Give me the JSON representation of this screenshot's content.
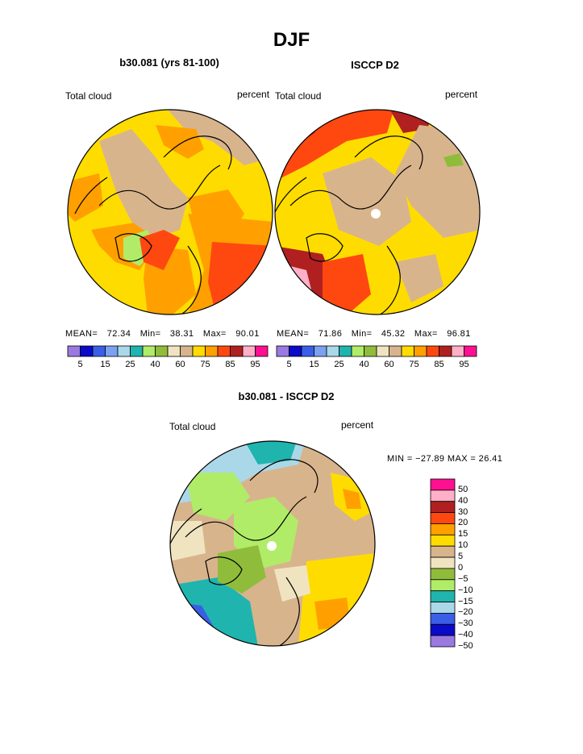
{
  "title": "DJF",
  "panels": [
    {
      "title": "b30.081 (yrs 81-100)",
      "left_label": "Total cloud",
      "right_label": "percent",
      "stats": {
        "mean_label": "MEAN=",
        "mean": "72.34",
        "min_label": "Min=",
        "min": "38.31",
        "max_label": "Max=",
        "max": "90.01"
      }
    },
    {
      "title": "ISCCP D2",
      "left_label": "Total cloud",
      "right_label": "percent",
      "stats": {
        "mean_label": "MEAN=",
        "mean": "71.86",
        "min_label": "Min=",
        "min": "45.32",
        "max_label": "Max=",
        "max": "96.81"
      }
    },
    {
      "title": "b30.081 - ISCCP D2",
      "left_label": "Total cloud",
      "right_label": "percent",
      "minmax": "MIN = −27.89 MAX =  26.41"
    }
  ],
  "colorbar_top": {
    "colors": [
      "#9a7ae0",
      "#0a0ac8",
      "#3a5ee8",
      "#7aa2f0",
      "#aad8e8",
      "#20b4ae",
      "#b0ec68",
      "#90bc3c",
      "#f0e4c0",
      "#d8b48c",
      "#ffdc00",
      "#ffa000",
      "#ff4810",
      "#b02020",
      "#ffb0c8",
      "#ff1090"
    ],
    "ticks": [
      "5",
      "15",
      "25",
      "40",
      "60",
      "75",
      "85",
      "95"
    ]
  },
  "colorbar_diff": {
    "colors": [
      "#ff1090",
      "#ffb0c8",
      "#b02020",
      "#ff4810",
      "#ffa000",
      "#ffdc00",
      "#d8b48c",
      "#f0e4c0",
      "#90bc3c",
      "#b0ec68",
      "#20b4ae",
      "#aad8e8",
      "#3a5ee8",
      "#0a0ac8",
      "#9a7ae0"
    ],
    "ticks": [
      "50",
      "40",
      "30",
      "20",
      "15",
      "10",
      "5",
      "0",
      "−5",
      "−10",
      "−15",
      "−20",
      "−30",
      "−40",
      "−50"
    ]
  },
  "legend_colors": {
    "ocean_high": "#ff4810",
    "mid_orange": "#ffa000",
    "yellow": "#ffdc00",
    "tan": "#d8b48c",
    "coast": "#000000"
  }
}
